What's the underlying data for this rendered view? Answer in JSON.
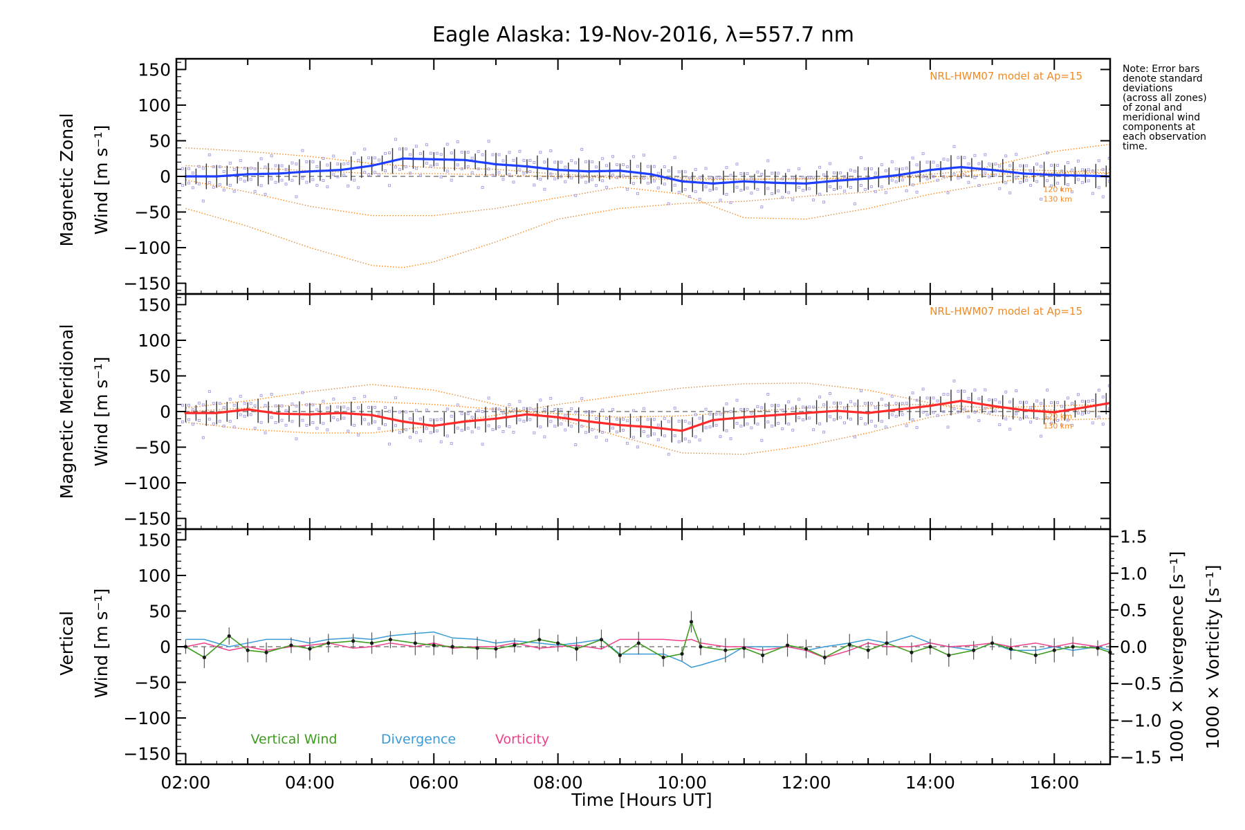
{
  "title": "Eagle Alaska: 19-Nov-2016, λ=557.7 nm",
  "note": [
    "Note: Error bars",
    "denote standard",
    "deviations",
    "(across all zones)",
    "of zonal and",
    "meridional wind",
    "components at",
    "each observation",
    "time."
  ],
  "model_label": "NRL-HWM07 model at Ap=15",
  "alt_labels": [
    "120 km",
    "130 km"
  ],
  "xlabel": "Time [Hours UT]",
  "x_ticks": [
    "02:00",
    "04:00",
    "06:00",
    "08:00",
    "10:00",
    "12:00",
    "14:00",
    "16:00"
  ],
  "y_ticks": [
    "150",
    "100",
    "50",
    "0",
    "−50",
    "−100",
    "−150"
  ],
  "y2_ticks": [
    "1.5",
    "1.0",
    "0.5",
    "0.0",
    "−0.5",
    "−1.0",
    "−1.5"
  ],
  "ylabels": {
    "zonal": [
      "Magnetic Zonal",
      "Wind [m s⁻¹]"
    ],
    "meridional": [
      "Magnetic Meridional",
      "Wind [m s⁻¹]"
    ],
    "vertical": [
      "Vertical",
      "Wind [m s⁻¹]"
    ],
    "divergence": "1000 × Divergence [s⁻¹]",
    "vorticity": "1000 × Vorticity [s⁻¹]"
  },
  "legend": [
    "Vertical Wind",
    "Divergence",
    "Vorticity"
  ],
  "colors": {
    "zonal": "#1f3fff",
    "meridional": "#ff2a2a",
    "vertical": "#3f9b1f",
    "divergence": "#3a9bd8",
    "vorticity": "#ef3f8a",
    "model": "#f08a24",
    "scatter": "#a9a3e3"
  },
  "chart_data": [
    {
      "type": "line",
      "panel": "zonal",
      "xlim": [
        1.85,
        16.9
      ],
      "ylim": [
        -165,
        165
      ],
      "series": [
        {
          "role": "mean",
          "x": [
            2.0,
            2.5,
            3.0,
            3.5,
            4.0,
            4.5,
            5.0,
            5.5,
            6.0,
            6.5,
            7.0,
            7.5,
            8.0,
            8.5,
            9.0,
            9.5,
            10.0,
            10.5,
            11.0,
            11.5,
            12.0,
            12.5,
            13.0,
            13.5,
            14.0,
            14.5,
            15.0,
            15.5,
            16.0,
            16.5,
            16.9
          ],
          "y": [
            0,
            0,
            3,
            4,
            7,
            9,
            15,
            25,
            24,
            23,
            17,
            14,
            9,
            7,
            8,
            3,
            -7,
            -10,
            -7,
            -9,
            -10,
            -6,
            -3,
            2,
            9,
            13,
            9,
            4,
            2,
            1,
            0
          ]
        },
        {
          "role": "model",
          "x": [
            2.0,
            3.0,
            4.0,
            5.0,
            5.5,
            6.0,
            7.0,
            8.0,
            9.0,
            10.0,
            11.0,
            12.0,
            13.0,
            14.0,
            15.0,
            16.0,
            16.9
          ],
          "y": [
            -45,
            -70,
            -100,
            -125,
            -128,
            -120,
            -92,
            -60,
            -45,
            -38,
            -35,
            -28,
            -22,
            -8,
            15,
            35,
            45
          ]
        },
        {
          "role": "model",
          "x": [
            2.0,
            3.0,
            4.0,
            5.0,
            6.0,
            7.0,
            8.0,
            9.0,
            10.0,
            10.5,
            11.0,
            12.0,
            13.0,
            14.0,
            15.0,
            16.0,
            16.9
          ],
          "y": [
            -5,
            -22,
            -42,
            -55,
            -55,
            -45,
            -30,
            -15,
            -25,
            -42,
            -58,
            -60,
            -45,
            -25,
            -10,
            5,
            10
          ]
        },
        {
          "role": "model",
          "x": [
            2.0,
            3.0,
            4.0,
            5.0,
            6.0,
            7.0,
            8.0,
            9.0,
            10.0,
            11.0,
            12.0,
            13.0,
            14.0,
            15.0,
            16.0,
            16.9
          ],
          "y": [
            40,
            35,
            28,
            18,
            12,
            10,
            3,
            0,
            -2,
            -4,
            -4,
            -3,
            3,
            10,
            8,
            5
          ]
        },
        {
          "role": "model",
          "x": [
            2.0,
            3.0,
            4.0,
            5.0,
            6.0,
            7.0,
            8.0,
            9.0,
            10.0,
            11.0,
            12.0,
            13.0,
            14.0,
            15.0,
            16.0,
            16.9
          ],
          "y": [
            15,
            12,
            8,
            4,
            4,
            2,
            0,
            -2,
            -5,
            -4,
            -3,
            -2,
            -1,
            3,
            5,
            4
          ]
        }
      ]
    },
    {
      "type": "line",
      "panel": "meridional",
      "xlim": [
        1.85,
        16.9
      ],
      "ylim": [
        -165,
        165
      ],
      "series": [
        {
          "role": "mean",
          "x": [
            2.0,
            2.5,
            3.0,
            3.5,
            4.0,
            4.5,
            5.0,
            5.5,
            6.0,
            6.5,
            7.0,
            7.5,
            8.0,
            8.5,
            9.0,
            9.5,
            10.0,
            10.5,
            11.0,
            11.5,
            12.0,
            12.5,
            13.0,
            13.5,
            14.0,
            14.5,
            15.0,
            15.5,
            16.0,
            16.5,
            16.9
          ],
          "y": [
            -2,
            -2,
            3,
            -3,
            -4,
            -2,
            -5,
            -14,
            -20,
            -14,
            -10,
            -4,
            -8,
            -14,
            -19,
            -22,
            -27,
            -12,
            -8,
            -5,
            -2,
            1,
            -2,
            3,
            8,
            15,
            8,
            2,
            -1,
            6,
            12
          ]
        },
        {
          "role": "model",
          "x": [
            2.0,
            3.0,
            4.0,
            5.0,
            6.0,
            7.0,
            8.0,
            9.0,
            10.0,
            11.0,
            12.0,
            13.0,
            14.0,
            15.0,
            16.0,
            16.9
          ],
          "y": [
            5,
            15,
            28,
            38,
            30,
            10,
            -10,
            -35,
            -58,
            -60,
            -48,
            -30,
            -8,
            5,
            8,
            10
          ]
        },
        {
          "role": "model",
          "x": [
            2.0,
            3.0,
            4.0,
            5.0,
            6.0,
            7.0,
            8.0,
            9.0,
            10.0,
            11.0,
            12.0,
            13.0,
            14.0,
            15.0,
            16.0,
            16.9
          ],
          "y": [
            -15,
            -25,
            -30,
            -30,
            -20,
            -5,
            10,
            22,
            33,
            39,
            40,
            30,
            12,
            -5,
            -12,
            -10
          ]
        },
        {
          "role": "model",
          "x": [
            2.0,
            3.0,
            4.0,
            5.0,
            6.0,
            7.0,
            8.0,
            9.0,
            10.0,
            11.0,
            12.0,
            13.0,
            14.0,
            15.0,
            16.0,
            16.9
          ],
          "y": [
            0,
            5,
            10,
            14,
            10,
            3,
            -3,
            -8,
            -6,
            0,
            5,
            8,
            10,
            5,
            2,
            0
          ]
        }
      ]
    },
    {
      "type": "line",
      "panel": "vertical",
      "xlim": [
        1.85,
        16.9
      ],
      "ylim": [
        -165,
        165
      ],
      "y2lim": [
        -1.6,
        1.6
      ],
      "series": [
        {
          "name": "Vertical Wind",
          "axis": "left",
          "x": [
            2.0,
            2.3,
            2.7,
            3.0,
            3.3,
            3.7,
            4.0,
            4.3,
            4.7,
            5.0,
            5.3,
            5.7,
            6.0,
            6.3,
            6.7,
            7.0,
            7.3,
            7.7,
            8.0,
            8.3,
            8.7,
            9.0,
            9.3,
            9.7,
            10.0,
            10.15,
            10.3,
            10.7,
            11.0,
            11.3,
            11.7,
            12.0,
            12.3,
            12.7,
            13.0,
            13.3,
            13.7,
            14.0,
            14.3,
            14.7,
            15.0,
            15.3,
            15.7,
            16.0,
            16.3,
            16.7,
            16.9
          ],
          "y": [
            0,
            -15,
            15,
            -5,
            -8,
            2,
            -3,
            5,
            8,
            5,
            10,
            5,
            2,
            0,
            -2,
            -3,
            2,
            10,
            5,
            -3,
            10,
            -12,
            5,
            -15,
            -10,
            35,
            0,
            -5,
            -2,
            -12,
            2,
            -3,
            -15,
            3,
            -5,
            5,
            -8,
            0,
            -12,
            -5,
            5,
            -3,
            -12,
            -5,
            0,
            -2,
            -8
          ]
        },
        {
          "name": "Divergence",
          "axis": "right",
          "x": [
            2.0,
            2.3,
            2.7,
            3.0,
            3.3,
            3.7,
            4.0,
            4.3,
            4.7,
            5.0,
            5.3,
            5.7,
            6.0,
            6.3,
            6.7,
            7.0,
            7.3,
            7.7,
            8.0,
            8.3,
            8.7,
            9.0,
            9.3,
            9.7,
            10.0,
            10.15,
            10.3,
            10.7,
            11.0,
            11.3,
            11.7,
            12.0,
            12.3,
            12.7,
            13.0,
            13.3,
            13.7,
            14.0,
            14.3,
            14.7,
            15.0,
            15.3,
            15.7,
            16.0,
            16.3,
            16.7,
            16.9
          ],
          "y": [
            0.1,
            0.1,
            0.0,
            0.05,
            0.1,
            0.1,
            0.05,
            0.1,
            0.12,
            0.1,
            0.15,
            0.18,
            0.2,
            0.12,
            0.1,
            0.05,
            0.08,
            0.05,
            0.02,
            0.05,
            0.1,
            -0.1,
            -0.1,
            -0.1,
            -0.2,
            -0.28,
            -0.25,
            -0.15,
            0.0,
            0.0,
            0.0,
            -0.05,
            0.0,
            0.05,
            0.1,
            0.05,
            0.15,
            0.05,
            0.0,
            -0.05,
            0.05,
            -0.05,
            -0.05,
            0.0,
            -0.05,
            0.0,
            -0.05
          ]
        },
        {
          "name": "Vorticity",
          "axis": "right",
          "x": [
            2.0,
            2.3,
            2.7,
            3.0,
            3.3,
            3.7,
            4.0,
            4.3,
            4.7,
            5.0,
            5.3,
            5.7,
            6.0,
            6.3,
            6.7,
            7.0,
            7.3,
            7.7,
            8.0,
            8.3,
            8.7,
            9.0,
            9.3,
            9.7,
            10.0,
            10.15,
            10.3,
            10.7,
            11.0,
            11.3,
            11.7,
            12.0,
            12.3,
            12.7,
            13.0,
            13.3,
            13.7,
            14.0,
            14.3,
            14.7,
            15.0,
            15.3,
            15.7,
            16.0,
            16.3,
            16.7,
            16.9
          ],
          "y": [
            0.0,
            0.05,
            -0.05,
            0.0,
            -0.05,
            0.0,
            0.02,
            0.05,
            -0.02,
            0.0,
            0.05,
            0.0,
            0.05,
            -0.02,
            0.0,
            0.0,
            0.05,
            -0.02,
            0.0,
            0.02,
            -0.03,
            0.1,
            0.1,
            0.1,
            0.08,
            0.1,
            0.05,
            0.0,
            0.0,
            -0.05,
            0.0,
            -0.05,
            -0.15,
            -0.05,
            0.05,
            0.0,
            0.0,
            0.05,
            0.0,
            0.02,
            0.05,
            0.0,
            0.05,
            0.0,
            0.05,
            0.0,
            0.05
          ]
        }
      ]
    }
  ]
}
